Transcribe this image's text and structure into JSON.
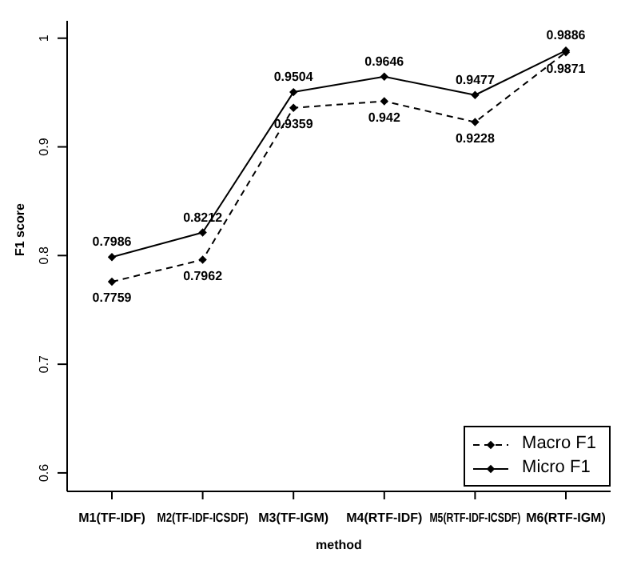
{
  "chart_data": {
    "type": "line",
    "xlabel": "method",
    "ylabel": "F1 score",
    "categories": [
      "M1(TF-IDF)",
      "M2(TF-IDF-ICSDF)",
      "M3(TF-IGM)",
      "M4(RTF-IDF)",
      "M5(RTF-IDF-ICSDF)",
      "M6(RTF-IGM)"
    ],
    "series": [
      {
        "name": "Macro F1",
        "color": "#000000",
        "line_style": "dashed",
        "values": [
          0.7759,
          0.7962,
          0.9359,
          0.942,
          0.9228,
          0.9871
        ]
      },
      {
        "name": "Micro F1",
        "color": "#000000",
        "line_style": "solid",
        "values": [
          0.7986,
          0.8212,
          0.9504,
          0.9646,
          0.9477,
          0.9886
        ]
      }
    ],
    "ylim": [
      0.583,
      1.016
    ],
    "yticks": [
      0.6,
      0.7,
      0.8,
      0.9,
      1.0
    ],
    "grid": false,
    "legend": "bottom right",
    "marker": "diamond",
    "data_labels": true
  }
}
